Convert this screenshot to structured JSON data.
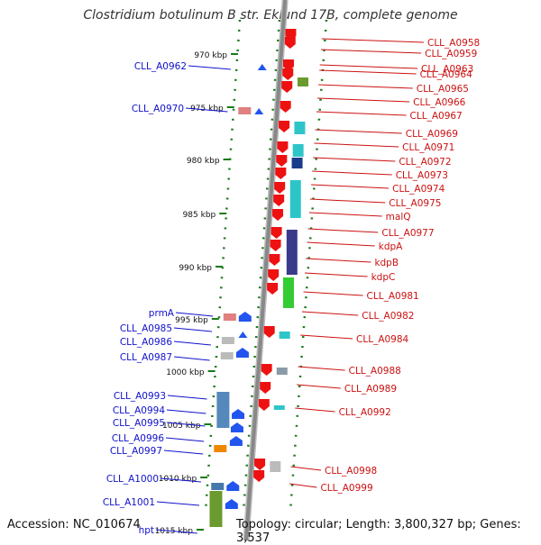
{
  "title": "Clostridium botulinum B str. Eklund 17B, complete genome",
  "footer": {
    "accession": "Accession: NC_010674",
    "topology": "Topology: circular; Length: 3,800,327 bp; Genes: 3,537"
  },
  "colors": {
    "left_gene_label": "#1111cc",
    "right_gene_label": "#cc1111",
    "tick_green": "#1a7a1a",
    "backbone": "#888888"
  },
  "scale_ticks": [
    "970 kbp",
    "975 kbp",
    "980 kbp",
    "985 kbp",
    "990 kbp",
    "995 kbp",
    "1000 kbp",
    "1005 kbp",
    "1010 kbp",
    "1015 kbp"
  ],
  "left_genes": [
    "CLL_A0962",
    "CLL_A0970",
    "prmA",
    "CLL_A0985",
    "CLL_A0986",
    "CLL_A0987",
    "CLL_A0993",
    "CLL_A0994",
    "CLL_A0995",
    "CLL_A0996",
    "CLL_A0997",
    "CLL_A1000",
    "CLL_A1001",
    "hpt"
  ],
  "right_genes": [
    "CLL_A0958",
    "CLL_A0959",
    "CLL_A0963",
    "CLL_A0964",
    "CLL_A0965",
    "CLL_A0966",
    "CLL_A0967",
    "CLL_A0969",
    "CLL_A0971",
    "CLL_A0972",
    "CLL_A0973",
    "CLL_A0974",
    "CLL_A0975",
    "malQ",
    "CLL_A0977",
    "kdpA",
    "kdpB",
    "kdpC",
    "CLL_A0981",
    "CLL_A0982",
    "CLL_A0984",
    "CLL_A0988",
    "CLL_A0989",
    "CLL_A0992",
    "CLL_A0998",
    "CLL_A0999"
  ]
}
